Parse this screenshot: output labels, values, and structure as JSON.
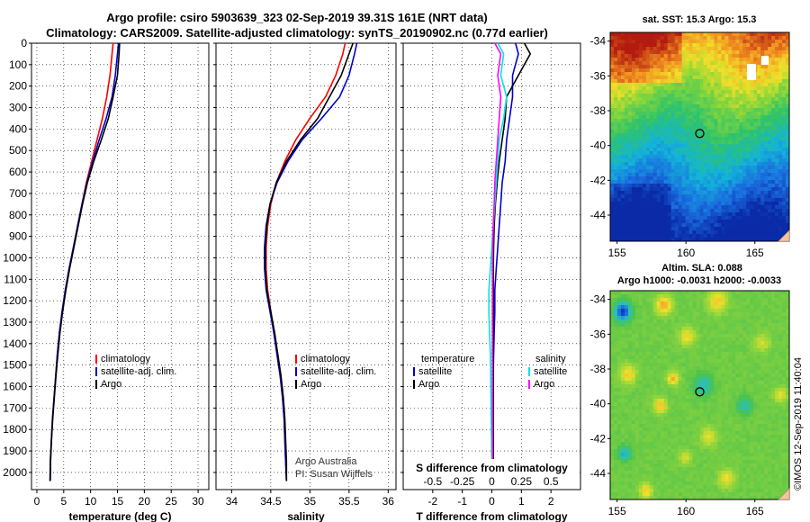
{
  "header": {
    "title_line1": "Argo profile: csiro 5903639_323 02-Sep-2019 39.31S 161E (NRT data)",
    "title_line2": "Climatology: CARS2009. Satellite-adjusted climatology: synTS_20190902.nc (0.77d earlier)"
  },
  "colors": {
    "climatology": "#ff0000",
    "satellite": "#0000cc",
    "argo": "#000000",
    "sat_salinity": "#00e5e5",
    "argo_salinity": "#ff00ff"
  },
  "chart_data": [
    {
      "type": "line",
      "name": "temperature-profile",
      "xlabel": "temperature (deg C)",
      "ylabel": "",
      "xlim": [
        -1,
        32
      ],
      "ylim": [
        0,
        2080
      ],
      "xticks": [
        0,
        5,
        10,
        15,
        20,
        25,
        30
      ],
      "yticks": [
        0,
        100,
        200,
        300,
        400,
        500,
        600,
        700,
        800,
        900,
        1000,
        1100,
        1200,
        1300,
        1400,
        1500,
        1600,
        1700,
        1800,
        1900,
        2000
      ],
      "legend": [
        "climatology",
        "satellite-adj. clim.",
        "Argo"
      ],
      "series": [
        {
          "name": "climatology",
          "color": "#ff0000",
          "x": [
            14.2,
            14.0,
            13.6,
            13.0,
            12.2,
            11.2,
            10.2,
            9.2,
            8.4,
            7.6,
            6.8,
            6.0,
            5.3,
            4.7,
            4.2,
            3.8,
            3.5,
            3.2,
            2.9,
            2.7,
            2.5,
            2.45
          ],
          "y": [
            0,
            50,
            150,
            250,
            350,
            450,
            550,
            650,
            750,
            850,
            950,
            1050,
            1150,
            1250,
            1350,
            1450,
            1550,
            1650,
            1750,
            1850,
            1950,
            2040
          ]
        },
        {
          "name": "satellite-adj. clim.",
          "color": "#0000cc",
          "x": [
            15.2,
            15.0,
            14.6,
            14.0,
            12.9,
            11.6,
            10.4,
            9.3,
            8.4,
            7.6,
            6.8,
            6.0,
            5.3,
            4.7,
            4.2,
            3.8,
            3.5,
            3.2,
            2.9,
            2.7,
            2.5,
            2.45
          ],
          "y": [
            0,
            50,
            150,
            250,
            350,
            450,
            550,
            650,
            750,
            850,
            950,
            1050,
            1150,
            1250,
            1350,
            1450,
            1550,
            1650,
            1750,
            1850,
            1950,
            2040
          ]
        },
        {
          "name": "Argo",
          "color": "#000000",
          "x": [
            15.4,
            15.3,
            15.0,
            14.2,
            13.3,
            12.0,
            10.6,
            9.4,
            8.5,
            7.7,
            6.9,
            6.1,
            5.4,
            4.8,
            4.3,
            3.9,
            3.55,
            3.25,
            2.95,
            2.72,
            2.55,
            2.5
          ],
          "y": [
            0,
            50,
            150,
            250,
            350,
            450,
            550,
            650,
            750,
            850,
            950,
            1050,
            1150,
            1250,
            1350,
            1450,
            1550,
            1650,
            1750,
            1850,
            1950,
            2040
          ]
        }
      ]
    },
    {
      "type": "line",
      "name": "salinity-profile",
      "xlabel": "salinity",
      "xlim": [
        33.8,
        36.1
      ],
      "ylim": [
        0,
        2080
      ],
      "xticks": [
        34,
        34.5,
        35,
        35.5,
        36
      ],
      "xticklabels": [
        "34",
        "34.5",
        "35",
        "35.5",
        "36"
      ],
      "legend": [
        "climatology",
        "satellite-adj. clim.",
        "Argo"
      ],
      "annotations": [
        "Argo Australia",
        "PI: Susan Wijffels"
      ],
      "series": [
        {
          "name": "climatology",
          "color": "#ff0000",
          "x": [
            35.45,
            35.42,
            35.33,
            35.2,
            35.0,
            34.82,
            34.68,
            34.57,
            34.5,
            34.46,
            34.44,
            34.44,
            34.46,
            34.5,
            34.54,
            34.58,
            34.62,
            34.65,
            34.67,
            34.68,
            34.69,
            34.7
          ],
          "y": [
            0,
            50,
            150,
            250,
            350,
            450,
            550,
            650,
            750,
            850,
            950,
            1050,
            1150,
            1250,
            1350,
            1450,
            1550,
            1650,
            1750,
            1850,
            1950,
            2040
          ]
        },
        {
          "name": "satellite-adj. clim.",
          "color": "#0000cc",
          "x": [
            35.6,
            35.57,
            35.5,
            35.38,
            35.15,
            34.9,
            34.72,
            34.58,
            34.49,
            34.44,
            34.42,
            34.42,
            34.44,
            34.49,
            34.54,
            34.58,
            34.62,
            34.65,
            34.67,
            34.68,
            34.69,
            34.7
          ],
          "y": [
            0,
            50,
            150,
            250,
            350,
            450,
            550,
            650,
            750,
            850,
            950,
            1050,
            1150,
            1250,
            1350,
            1450,
            1550,
            1650,
            1750,
            1850,
            1950,
            2040
          ]
        },
        {
          "name": "Argo",
          "color": "#000000",
          "x": [
            35.55,
            35.5,
            35.4,
            35.25,
            35.1,
            34.88,
            34.7,
            34.57,
            34.49,
            34.45,
            34.43,
            34.43,
            34.45,
            34.5,
            34.55,
            34.59,
            34.63,
            34.66,
            34.68,
            34.69,
            34.7,
            34.7
          ],
          "y": [
            0,
            50,
            150,
            250,
            350,
            450,
            550,
            650,
            750,
            850,
            950,
            1050,
            1150,
            1250,
            1350,
            1450,
            1550,
            1650,
            1750,
            1850,
            1950,
            2040
          ]
        }
      ]
    },
    {
      "type": "line",
      "name": "difference-profile",
      "xlabel": "T difference from climatology",
      "xlabel_top": "S difference from climatology",
      "xlim": [
        -3,
        3
      ],
      "ylim": [
        0,
        2080
      ],
      "xticks": [
        -2,
        -1,
        0,
        1,
        2
      ],
      "xticks_top_labels": [
        "-0.5",
        "-0.25",
        "0",
        "0.25",
        "0.5"
      ],
      "xticks_top_values": [
        -2,
        -1,
        0,
        1,
        2
      ],
      "legend_left_title": "temperature",
      "legend_right_title": "salinity",
      "legend_left": [
        "satellite",
        "Argo"
      ],
      "legend_right": [
        "satellite",
        "Argo"
      ],
      "series": [
        {
          "name": "temperature satellite",
          "color": "#0000cc",
          "x": [
            0.8,
            0.9,
            0.7,
            0.7,
            0.6,
            0.5,
            0.45,
            0.35,
            0.3,
            0.25,
            0.2,
            0.15,
            0.1,
            0.1,
            0.08,
            0.06,
            0.05,
            0.04,
            0.03,
            0.02,
            0.01,
            0.0
          ],
          "y": [
            0,
            50,
            150,
            250,
            350,
            450,
            550,
            650,
            750,
            850,
            950,
            1050,
            1150,
            1250,
            1350,
            1450,
            1550,
            1650,
            1750,
            1850,
            1950,
            2040
          ]
        },
        {
          "name": "temperature Argo",
          "color": "#000000",
          "x": [
            1.1,
            1.3,
            0.9,
            0.5,
            0.45,
            0.35,
            0.25,
            0.18,
            0.12,
            0.08,
            0.06,
            0.05,
            0.05,
            0.05,
            0.05,
            0.05,
            0.05,
            0.05,
            0.05,
            0.05,
            0.05,
            0.05
          ],
          "y": [
            0,
            50,
            150,
            250,
            350,
            450,
            550,
            650,
            750,
            850,
            950,
            1050,
            1150,
            1250,
            1350,
            1450,
            1550,
            1650,
            1750,
            1850,
            1950,
            2040
          ]
        },
        {
          "name": "salinity satellite",
          "color": "#00e5e5",
          "x": [
            0.2,
            0.4,
            0.3,
            0.5,
            0.4,
            0.25,
            0.2,
            0.15,
            0.1,
            0.05,
            0.0,
            -0.05,
            -0.1,
            -0.1,
            -0.08,
            -0.05,
            -0.04,
            -0.03,
            -0.02,
            -0.01,
            0.0,
            0.0
          ],
          "y": [
            0,
            50,
            150,
            250,
            350,
            450,
            550,
            650,
            750,
            850,
            950,
            1050,
            1150,
            1250,
            1350,
            1450,
            1550,
            1650,
            1750,
            1850,
            1950,
            2040
          ]
        },
        {
          "name": "salinity Argo",
          "color": "#ff00ff",
          "x": [
            0.1,
            0.3,
            0.2,
            0.3,
            0.25,
            0.2,
            0.15,
            0.1,
            0.08,
            0.05,
            0.03,
            0.02,
            0.02,
            0.02,
            0.02,
            0.02,
            0.02,
            0.02,
            0.02,
            0.02,
            0.02,
            0.02
          ],
          "y": [
            0,
            50,
            150,
            250,
            350,
            450,
            550,
            650,
            750,
            850,
            950,
            1050,
            1150,
            1250,
            1350,
            1450,
            1550,
            1650,
            1750,
            1850,
            1950,
            2040
          ]
        }
      ]
    },
    {
      "type": "heatmap",
      "name": "sst-map",
      "title": "sat. SST: 15.3 Argo: 15.3",
      "xlim": [
        154.5,
        167.5
      ],
      "ylim": [
        -45.5,
        -33.5
      ],
      "xticks": [
        155,
        160,
        165
      ],
      "yticks": [
        -34,
        -36,
        -38,
        -40,
        -42,
        -44
      ],
      "marker": {
        "lon": 161.0,
        "lat": -39.31
      }
    },
    {
      "type": "heatmap",
      "name": "sla-map",
      "title": "Altim. SLA: 0.088",
      "subtitle": "Argo h1000: -0.0031 h2000: -0.0033",
      "xlim": [
        154.5,
        167.5
      ],
      "ylim": [
        -45.5,
        -33.5
      ],
      "xticks": [
        155,
        160,
        165
      ],
      "yticks": [
        -34,
        -36,
        -38,
        -40,
        -42,
        -44
      ],
      "marker": {
        "lon": 161.0,
        "lat": -39.31
      }
    }
  ],
  "footer": {
    "credit": "©IMOS 12-Sep-2019 11:40:04"
  }
}
